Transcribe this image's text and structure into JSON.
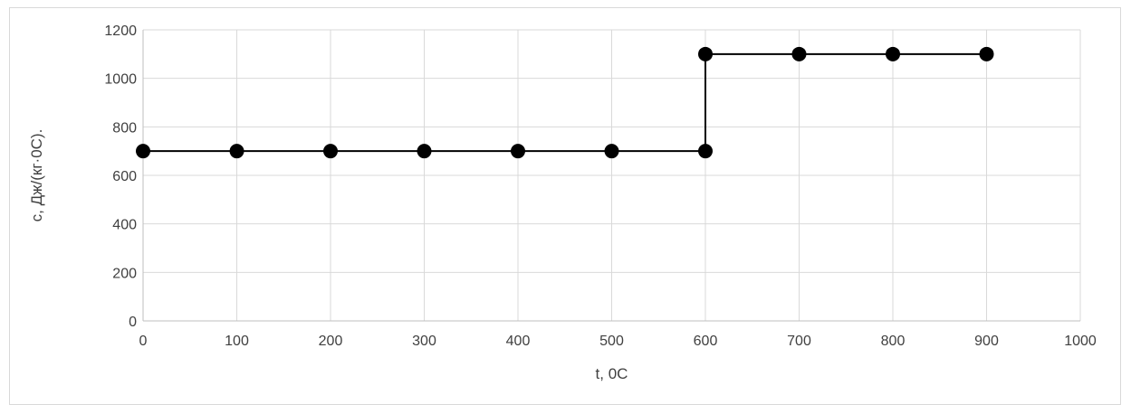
{
  "chart_data": {
    "type": "line",
    "xlabel": "t, 0C",
    "ylabel": "c, Дж/(кг·0С).",
    "xlim": [
      0,
      1000
    ],
    "ylim": [
      0,
      1200
    ],
    "x_ticks": [
      0,
      100,
      200,
      300,
      400,
      500,
      600,
      700,
      800,
      900,
      1000
    ],
    "y_ticks": [
      0,
      200,
      400,
      600,
      800,
      1000,
      1200
    ],
    "grid": true,
    "legend": "none",
    "series": [
      {
        "points": [
          {
            "x": 0,
            "y": 700
          },
          {
            "x": 100,
            "y": 700
          },
          {
            "x": 200,
            "y": 700
          },
          {
            "x": 300,
            "y": 700
          },
          {
            "x": 400,
            "y": 700
          },
          {
            "x": 500,
            "y": 700
          },
          {
            "x": 600,
            "y": 700
          },
          {
            "x": 600,
            "y": 1100
          },
          {
            "x": 700,
            "y": 1100
          },
          {
            "x": 800,
            "y": 1100
          },
          {
            "x": 900,
            "y": 1100
          }
        ],
        "color": "#000000"
      }
    ],
    "colors": {
      "grid": "#d9d9d9",
      "axis": "#bfbfbf",
      "text": "#404040",
      "series": "#000000"
    }
  }
}
